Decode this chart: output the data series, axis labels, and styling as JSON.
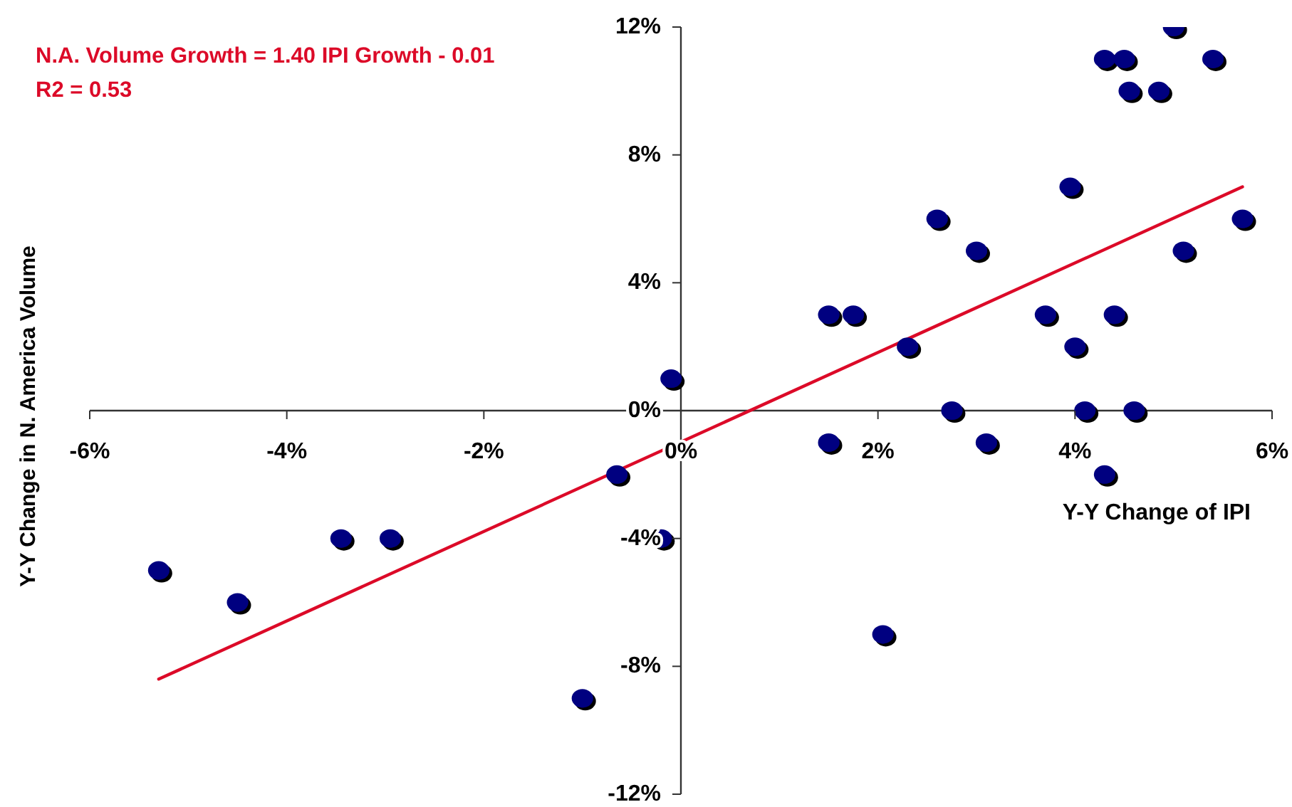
{
  "chart_data": {
    "type": "scatter",
    "xlabel": "Y-Y Change of IPI",
    "ylabel": "Y-Y Change in N. America Volume",
    "annotations": [
      "N.A. Volume Growth = 1.40 IPI Growth - 0.01",
      "R2 = 0.53"
    ],
    "xlim": [
      -6,
      6
    ],
    "ylim": [
      -12,
      12
    ],
    "xticks": [
      {
        "value": -6,
        "label": "-6%"
      },
      {
        "value": -4,
        "label": "-4%"
      },
      {
        "value": -2,
        "label": "-2%"
      },
      {
        "value": 0,
        "label": "0%"
      },
      {
        "value": 2,
        "label": "2%"
      },
      {
        "value": 4,
        "label": "4%"
      },
      {
        "value": 6,
        "label": "6%"
      }
    ],
    "yticks": [
      {
        "value": -12,
        "label": "-12%"
      },
      {
        "value": -8,
        "label": "-8%"
      },
      {
        "value": -4,
        "label": "-4%"
      },
      {
        "value": 0,
        "label": "0%"
      },
      {
        "value": 4,
        "label": "4%"
      },
      {
        "value": 8,
        "label": "8%"
      },
      {
        "value": 12,
        "label": "12%"
      }
    ],
    "series": [
      {
        "type": "scatter",
        "color": "#000080",
        "marker": "circle",
        "x": [
          5.0,
          4.3,
          4.5,
          5.4,
          4.55,
          4.85,
          3.95,
          2.6,
          5.7,
          3.0,
          5.1,
          1.5,
          1.75,
          3.7,
          4.4,
          2.3,
          4.0,
          -0.1,
          2.75,
          4.1,
          4.6,
          1.5,
          3.1,
          4.3,
          -0.2,
          2.05,
          -0.65,
          -5.3,
          -4.5,
          -3.45,
          -2.95,
          -1.0
        ],
        "values": [
          12,
          11,
          11,
          11,
          10,
          10,
          7,
          6,
          6,
          5,
          5,
          3,
          3,
          3,
          3,
          2,
          2,
          1,
          0,
          0,
          0,
          -1,
          -1,
          -2,
          -4,
          -7,
          -2,
          -5,
          -6,
          -4,
          -4,
          -9
        ]
      },
      {
        "type": "line",
        "color": "#dc0a28",
        "x": [
          -5.3,
          5.7
        ],
        "values": [
          -8.4,
          7.0
        ]
      }
    ]
  }
}
